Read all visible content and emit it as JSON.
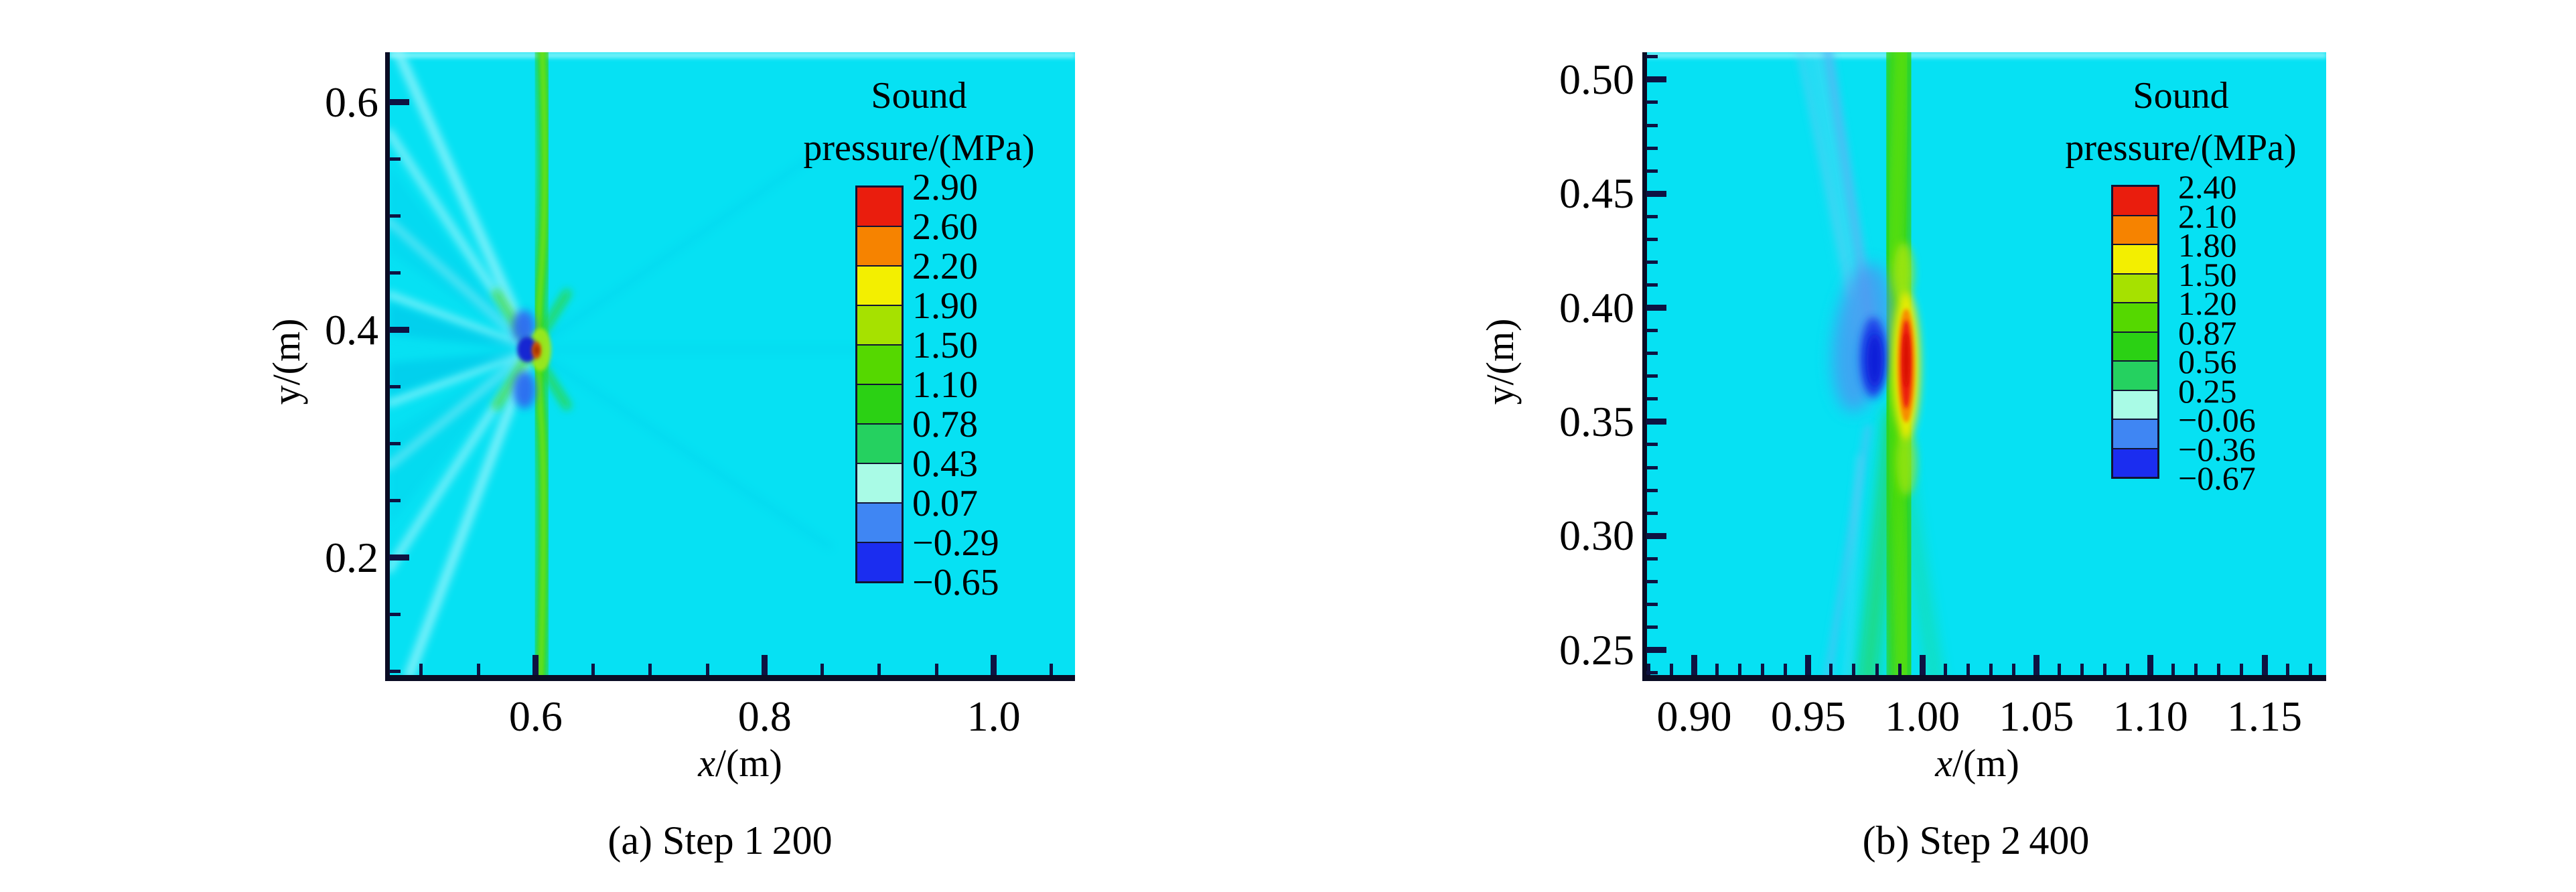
{
  "chart_data": [
    {
      "type": "heatmap",
      "caption": "(a) Step 1 200",
      "xlabel": "x/(m)",
      "ylabel": "y/(m)",
      "xlabel_variable": "x",
      "xlabel_unit": "/(m)",
      "ylabel_variable": "y",
      "ylabel_unit": "/(m)",
      "xlim": [
        0.472,
        1.071
      ],
      "ylim": [
        0.097,
        0.644
      ],
      "xticks": [
        0.6,
        0.8,
        1.0
      ],
      "xtick_labels": [
        "0.6",
        "0.8",
        "1.0"
      ],
      "yticks": [
        0.2,
        0.4,
        0.6
      ],
      "ytick_labels": [
        "0.2",
        "0.4",
        "0.6"
      ],
      "minor_tick_step": 0.05,
      "grid": false,
      "legend_position": "inside-right",
      "field_background_color": "#06e1f3",
      "colorbar": {
        "title": "Sound pressure/(MPa)",
        "title_line1": "Sound",
        "title_line2": "pressure/(MPa)",
        "tick_labels": [
          "2.90",
          "2.60",
          "2.20",
          "1.90",
          "1.50",
          "1.10",
          "0.78",
          "0.43",
          "0.07",
          "−0.29",
          "−0.65"
        ],
        "segment_colors_top_to_bottom": [
          "#ea1d0d",
          "#f68300",
          "#f3ef00",
          "#a6e100",
          "#55d800",
          "#2bd114",
          "#25d160",
          "#a9fbe6",
          "#3f86f3",
          "#1b2df0"
        ]
      },
      "features": {
        "description": "Curved green wavefront near x = 0.60 m with focal spot, crossing shock legs and fan of pale rays converging at the focus",
        "wavefront_x_m": 0.6,
        "focal_spot_xy_m": [
          0.62,
          0.375
        ],
        "peak_pressure_MPa": 2.9,
        "min_pressure_MPa": -0.65
      }
    },
    {
      "type": "heatmap",
      "caption": "(b) Step 2 400",
      "xlabel": "x/(m)",
      "ylabel": "y/(m)",
      "xlabel_variable": "x",
      "xlabel_unit": "/(m)",
      "ylabel_variable": "y",
      "ylabel_unit": "/(m)",
      "xlim": [
        0.879,
        1.177
      ],
      "ylim": [
        0.239,
        0.512
      ],
      "xticks": [
        0.9,
        0.95,
        1.0,
        1.05,
        1.1,
        1.15
      ],
      "xtick_labels": [
        "0.90",
        "0.95",
        "1.00",
        "1.05",
        "1.10",
        "1.15"
      ],
      "yticks": [
        0.25,
        0.3,
        0.35,
        0.4,
        0.45,
        0.5
      ],
      "ytick_labels": [
        "0.25",
        "0.30",
        "0.35",
        "0.40",
        "0.45",
        "0.50"
      ],
      "minor_tick_step": 0.01,
      "grid": false,
      "legend_position": "inside-right",
      "field_background_color": "#06e1f3",
      "colorbar": {
        "title": "Sound pressure/(MPa)",
        "title_line1": "Sound",
        "title_line2": "pressure/(MPa)",
        "tick_labels": [
          "2.40",
          "2.10",
          "1.80",
          "1.50",
          "1.20",
          "0.87",
          "0.56",
          "0.25",
          "−0.06",
          "−0.36",
          "−0.67"
        ],
        "segment_colors_top_to_bottom": [
          "#ea1d0d",
          "#f68300",
          "#f3ef00",
          "#a6e100",
          "#55d800",
          "#2bd114",
          "#25d160",
          "#a9fbe6",
          "#3f86f3",
          "#1b2df0"
        ]
      },
      "features": {
        "description": "Focused vertical green wavefront near x = 1.00 m with red high-pressure streak, dark blue rarefaction comet and crossing diagonal wave legs",
        "wavefront_x_m": 1.0,
        "focal_spot_xy_m": [
          0.99,
          0.375
        ],
        "peak_pressure_MPa": 2.4,
        "min_pressure_MPa": -0.67
      }
    }
  ]
}
